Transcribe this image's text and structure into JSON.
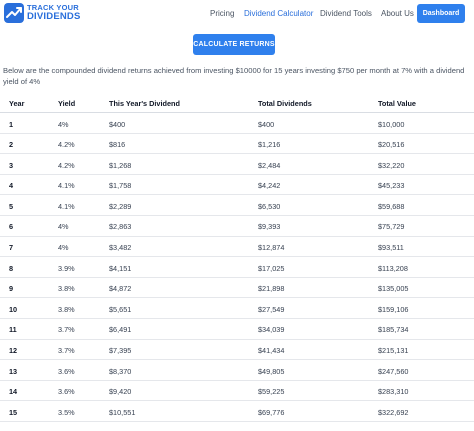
{
  "header": {
    "logo_line1": "TRACK YOUR",
    "logo_line2": "DIVIDENDS",
    "nav": [
      {
        "label": "Pricing",
        "active": false
      },
      {
        "label": "Dividend Calculator",
        "active": true
      },
      {
        "label": "Dividend Tools",
        "active": false
      },
      {
        "label": "About Us",
        "active": false
      }
    ],
    "dashboard_label": "Dashboard"
  },
  "calculate_label": "CALCULATE RETURNS",
  "description": "Below are the compounded dividend returns achieved from investing $10000 for 15 years investing $750 per month at 7% with a dividend yield of 4%",
  "table": {
    "headers": [
      "Year",
      "Yield",
      "This Year's Dividend",
      "Total Dividends",
      "Total Value"
    ],
    "rows": [
      [
        "1",
        "4%",
        "$400",
        "$400",
        "$10,000"
      ],
      [
        "2",
        "4.2%",
        "$816",
        "$1,216",
        "$20,516"
      ],
      [
        "3",
        "4.2%",
        "$1,268",
        "$2,484",
        "$32,220"
      ],
      [
        "4",
        "4.1%",
        "$1,758",
        "$4,242",
        "$45,233"
      ],
      [
        "5",
        "4.1%",
        "$2,289",
        "$6,530",
        "$59,688"
      ],
      [
        "6",
        "4%",
        "$2,863",
        "$9,393",
        "$75,729"
      ],
      [
        "7",
        "4%",
        "$3,482",
        "$12,874",
        "$93,511"
      ],
      [
        "8",
        "3.9%",
        "$4,151",
        "$17,025",
        "$113,208"
      ],
      [
        "9",
        "3.8%",
        "$4,872",
        "$21,898",
        "$135,005"
      ],
      [
        "10",
        "3.8%",
        "$5,651",
        "$27,549",
        "$159,106"
      ],
      [
        "11",
        "3.7%",
        "$6,491",
        "$34,039",
        "$185,734"
      ],
      [
        "12",
        "3.7%",
        "$7,395",
        "$41,434",
        "$215,131"
      ],
      [
        "13",
        "3.6%",
        "$8,370",
        "$49,805",
        "$247,560"
      ],
      [
        "14",
        "3.6%",
        "$9,420",
        "$59,225",
        "$283,310"
      ],
      [
        "15",
        "3.5%",
        "$10,551",
        "$69,776",
        "$322,692"
      ]
    ]
  },
  "colors": {
    "brand": "#2a6fdb",
    "button": "#2f80ed"
  }
}
